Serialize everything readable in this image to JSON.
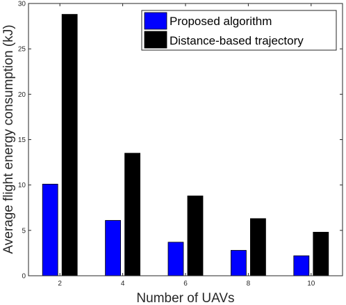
{
  "chart_data": {
    "type": "bar",
    "categories": [
      "2",
      "4",
      "6",
      "8",
      "10"
    ],
    "series": [
      {
        "name": "Proposed algorithm",
        "color": "#0000ff",
        "values": [
          10.1,
          6.1,
          3.7,
          2.8,
          2.2
        ]
      },
      {
        "name": "Distance-based trajectory",
        "color": "#000000",
        "values": [
          28.8,
          13.5,
          8.8,
          6.3,
          4.8
        ]
      }
    ],
    "xlabel": "Number of UAVs",
    "ylabel": "Average flight energy consumption (kJ)",
    "ylim": [
      0,
      30
    ],
    "yticks": [
      "0",
      "5",
      "10",
      "15",
      "20",
      "25",
      "30"
    ],
    "grid": false,
    "legend_position": "top-right"
  }
}
